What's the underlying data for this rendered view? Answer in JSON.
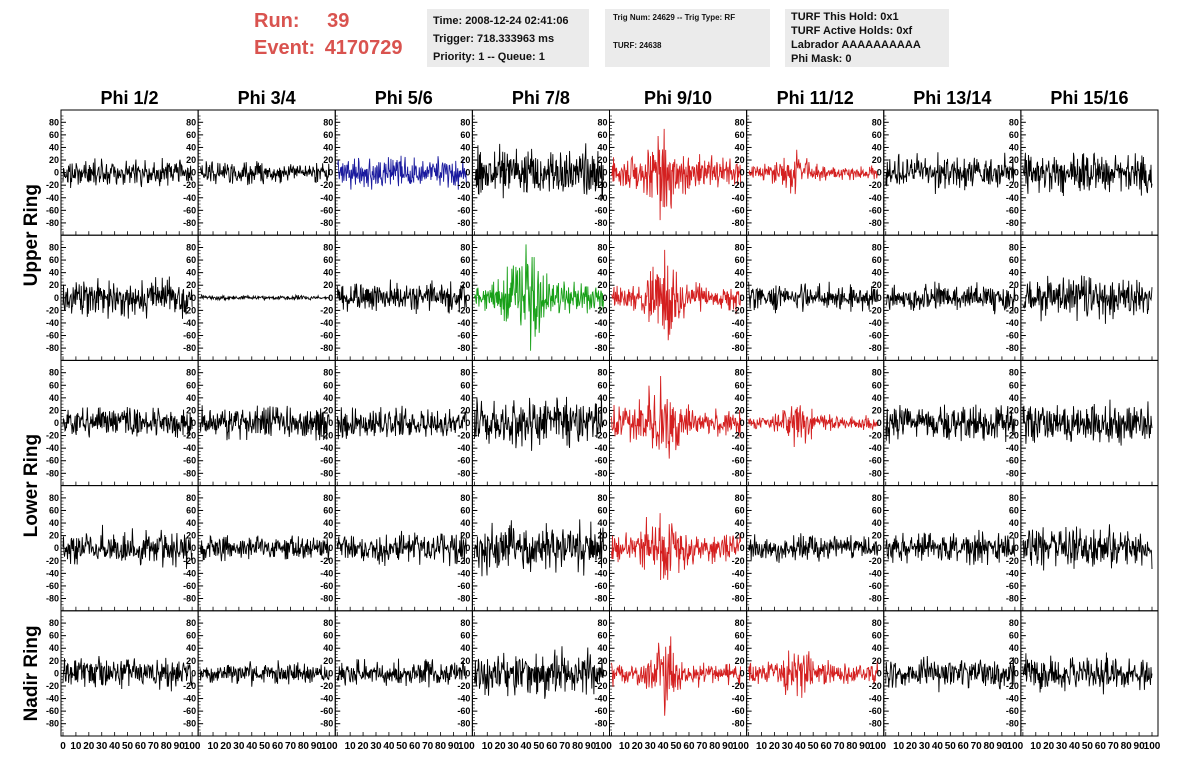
{
  "header": {
    "run_label": "Run:",
    "run_value": "39",
    "event_label": "Event:",
    "event_value": "4170729",
    "time": "Time: 2008-12-24 02:41:06",
    "trigger": "Trigger: 718.333963 ms",
    "priority": "Priority: 1 -- Queue: 1",
    "trig_num": "Trig Num: 24629 -- Trig Type: RF",
    "turf": "TURF: 24638",
    "turf_this_hold": "TURF This Hold: 0x1",
    "turf_active_holds": "TURF Active Holds: 0xf",
    "labrador": "Labrador AAAAAAAAAA",
    "phi_mask": "Phi Mask: 0"
  },
  "colors": {
    "header_red": "#d9534f",
    "trace_black": "#000000",
    "trace_red": "#d42020",
    "trace_blue": "#1a1a9e",
    "trace_green": "#18a018"
  },
  "chart_data": {
    "type": "line",
    "columns": [
      "Phi 1/2",
      "Phi 3/4",
      "Phi 5/6",
      "Phi 7/8",
      "Phi 9/10",
      "Phi 11/12",
      "Phi 13/14",
      "Phi 15/16"
    ],
    "ring_labels": [
      {
        "text": "Upper Ring",
        "rows": [
          0,
          1
        ]
      },
      {
        "text": "Lower Ring",
        "rows": [
          2,
          3
        ]
      },
      {
        "text": "Nadir Ring",
        "rows": [
          4,
          4
        ]
      }
    ],
    "xlim": [
      0,
      100
    ],
    "ylim": [
      -90,
      90
    ],
    "yticks": [
      80,
      60,
      40,
      20,
      0,
      -20,
      -40,
      -60,
      -80
    ],
    "xtick_labels": [
      "0",
      "10",
      "20",
      "30",
      "40",
      "50",
      "60",
      "70",
      "80",
      "90",
      "100"
    ],
    "panels": [
      [
        {
          "color": "black",
          "amplitude": 12
        },
        {
          "color": "black",
          "amplitude": 10
        },
        {
          "color": "blue",
          "amplitude": 14
        },
        {
          "color": "black",
          "amplitude": 22
        },
        {
          "color": "red",
          "amplitude": 30,
          "peak_x": 38
        },
        {
          "color": "red",
          "amplitude": 14,
          "peak_x": 35
        },
        {
          "color": "black",
          "amplitude": 16
        },
        {
          "color": "black",
          "amplitude": 20
        }
      ],
      [
        {
          "color": "black",
          "amplitude": 16
        },
        {
          "color": "black",
          "amplitude": 2
        },
        {
          "color": "black",
          "amplitude": 14
        },
        {
          "color": "green",
          "amplitude": 32,
          "peak_x": 40
        },
        {
          "color": "red",
          "amplitude": 28,
          "peak_x": 40
        },
        {
          "color": "black",
          "amplitude": 12
        },
        {
          "color": "black",
          "amplitude": 12
        },
        {
          "color": "black",
          "amplitude": 18
        }
      ],
      [
        {
          "color": "black",
          "amplitude": 14
        },
        {
          "color": "black",
          "amplitude": 14
        },
        {
          "color": "black",
          "amplitude": 14
        },
        {
          "color": "black",
          "amplitude": 22
        },
        {
          "color": "red",
          "amplitude": 30,
          "peak_x": 38
        },
        {
          "color": "red",
          "amplitude": 14,
          "peak_x": 38
        },
        {
          "color": "black",
          "amplitude": 16
        },
        {
          "color": "black",
          "amplitude": 18
        }
      ],
      [
        {
          "color": "black",
          "amplitude": 16
        },
        {
          "color": "black",
          "amplitude": 12
        },
        {
          "color": "black",
          "amplitude": 14
        },
        {
          "color": "black",
          "amplitude": 22
        },
        {
          "color": "red",
          "amplitude": 28,
          "peak_x": 38
        },
        {
          "color": "black",
          "amplitude": 12
        },
        {
          "color": "black",
          "amplitude": 14
        },
        {
          "color": "black",
          "amplitude": 18
        }
      ],
      [
        {
          "color": "black",
          "amplitude": 14
        },
        {
          "color": "black",
          "amplitude": 10
        },
        {
          "color": "black",
          "amplitude": 12
        },
        {
          "color": "black",
          "amplitude": 20
        },
        {
          "color": "red",
          "amplitude": 24,
          "peak_x": 40
        },
        {
          "color": "red",
          "amplitude": 22,
          "peak_x": 40
        },
        {
          "color": "black",
          "amplitude": 14
        },
        {
          "color": "black",
          "amplitude": 16
        }
      ]
    ]
  }
}
